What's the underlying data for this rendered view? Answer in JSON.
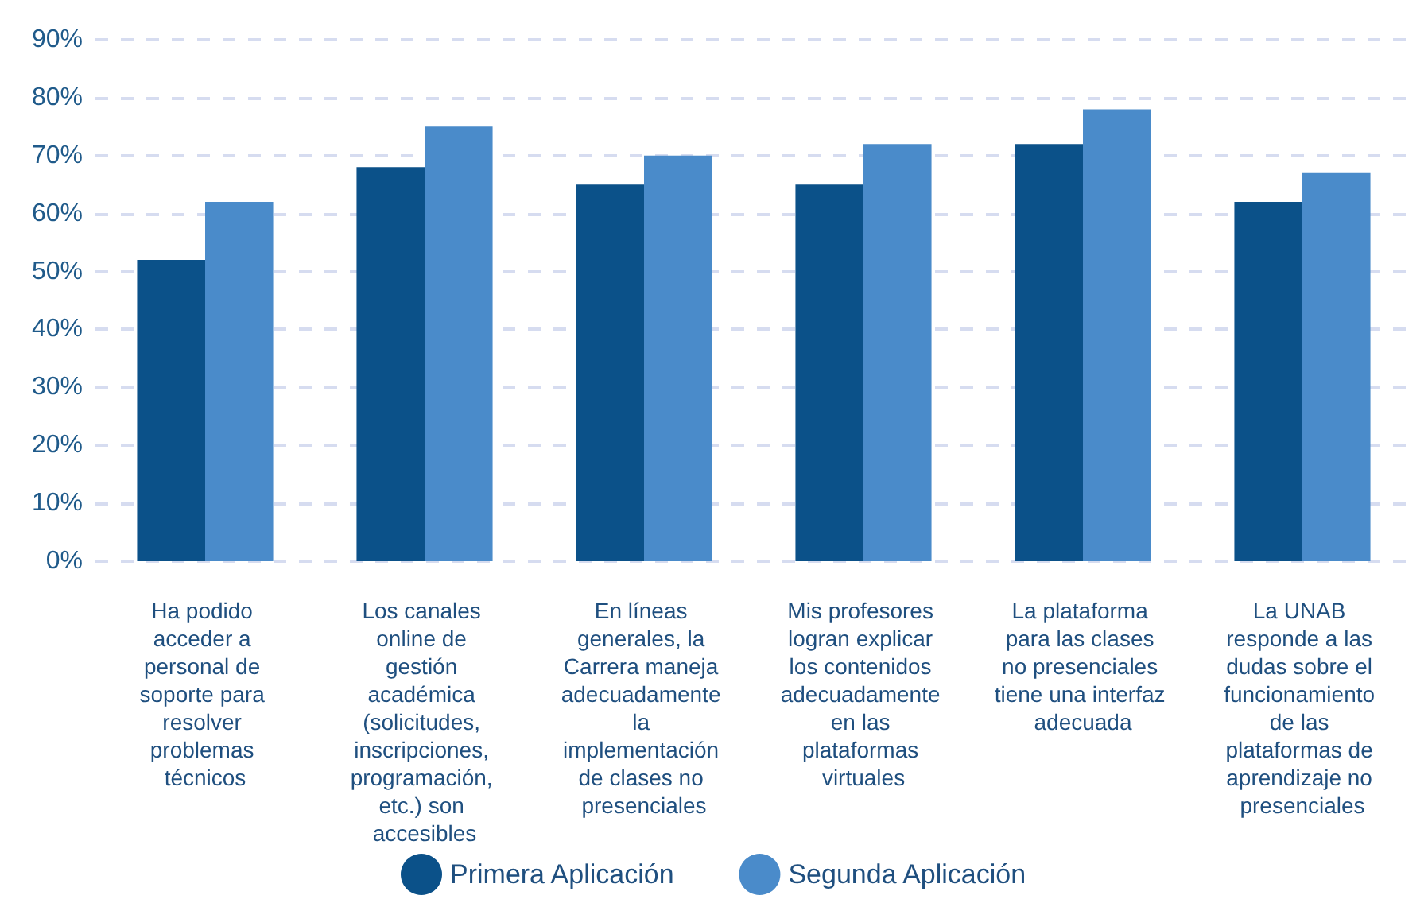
{
  "chart_data": {
    "type": "bar",
    "categories": [
      "Ha podido acceder a personal de soporte para resolver problemas técnicos",
      "Los canales online de gestión académica (solicitudes, inscripciones, programación, etc.) son accesibles",
      "En líneas generales, la Carrera maneja adecuadamente la implementación de clases no presenciales",
      "Mis profesores logran explicar los contenidos adecuadamente en las plataformas virtuales",
      "La plataforma para las clases no presenciales tiene una interfaz adecuada",
      "La UNAB responde a las dudas sobre el funcionamiento de las plataformas de aprendizaje no presenciales"
    ],
    "series": [
      {
        "name": "Primera Aplicación",
        "color": "#0b5189",
        "values": [
          52,
          68,
          65,
          65,
          72,
          62
        ]
      },
      {
        "name": "Segunda Aplicación",
        "color": "#4a8bca",
        "values": [
          62,
          75,
          70,
          72,
          78,
          67
        ]
      }
    ],
    "ylim": [
      0,
      90
    ],
    "yticks": [
      {
        "value": 0,
        "label": "0%"
      },
      {
        "value": 10,
        "label": "10%"
      },
      {
        "value": 20,
        "label": "20%"
      },
      {
        "value": 30,
        "label": "30%"
      },
      {
        "value": 40,
        "label": "40%"
      },
      {
        "value": 50,
        "label": "50%"
      },
      {
        "value": 60,
        "label": "60%"
      },
      {
        "value": 70,
        "label": "70%"
      },
      {
        "value": 80,
        "label": "80%"
      },
      {
        "value": 90,
        "label": "90%"
      }
    ],
    "grid": "y",
    "legend": "bottom"
  }
}
